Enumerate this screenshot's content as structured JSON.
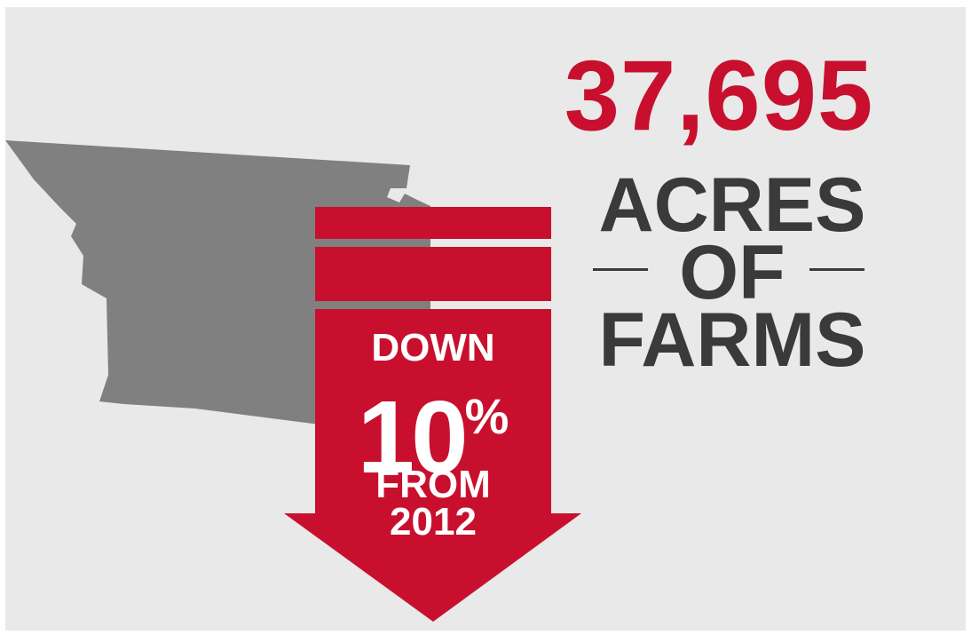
{
  "stat": {
    "value": "37,695",
    "label_line1": "ACRES",
    "label_line2": "OF",
    "label_line3": "FARMS"
  },
  "change": {
    "line1": "DOWN",
    "percent": "10",
    "percent_sign": "%",
    "line3": "FROM",
    "line4": "2012",
    "direction": "down"
  },
  "colors": {
    "accent_red": "#c8102e",
    "dark_text": "#3a3a3a",
    "map_gray": "#808080",
    "background": "#e9e9e9"
  }
}
